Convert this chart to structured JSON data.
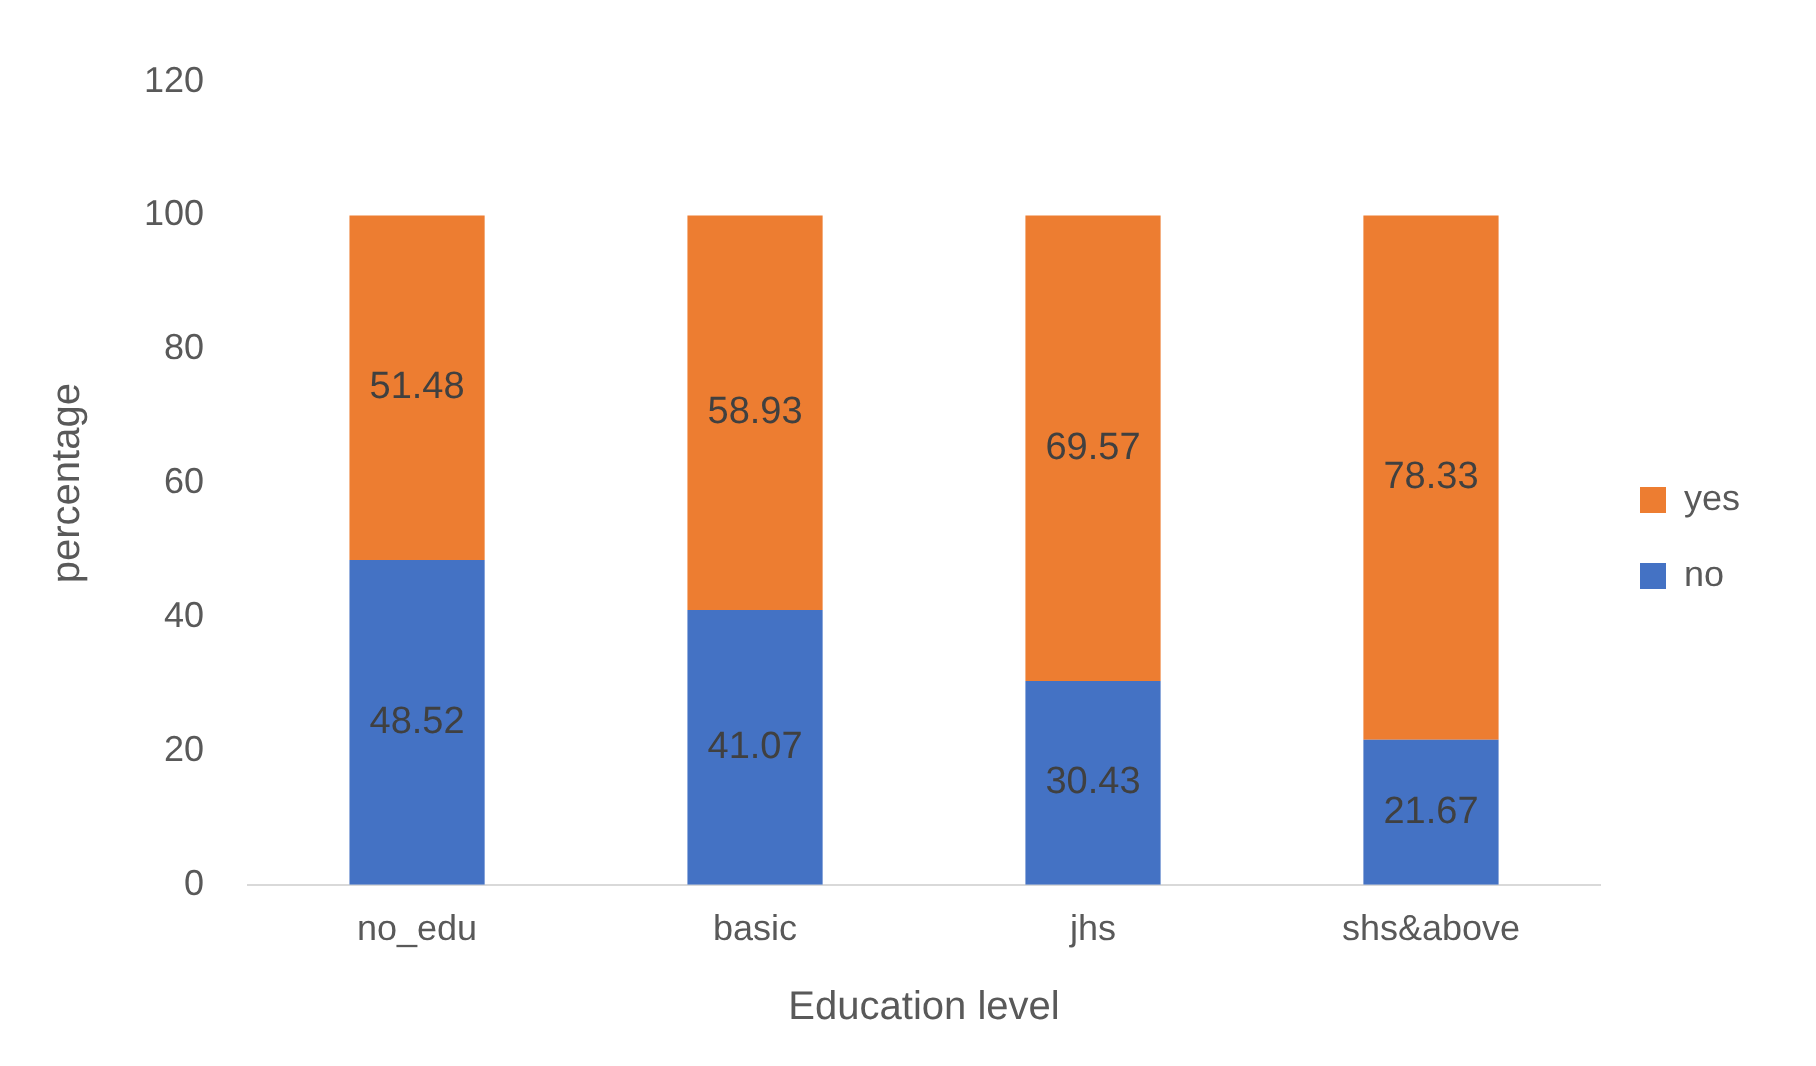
{
  "chart_data": {
    "type": "bar",
    "stacked": true,
    "xlabel": "Education level",
    "ylabel": "percentage",
    "categories": [
      "no_edu",
      "basic",
      "jhs",
      "shs&above"
    ],
    "series": [
      {
        "name": "no",
        "color": "#4472c4",
        "values": [
          48.52,
          41.07,
          30.43,
          21.67
        ]
      },
      {
        "name": "yes",
        "color": "#ed7d31",
        "values": [
          51.48,
          58.93,
          69.57,
          78.33
        ]
      }
    ],
    "ylim": [
      0,
      120
    ],
    "yticks": [
      0,
      20,
      40,
      60,
      80,
      100,
      120
    ],
    "grid": false,
    "legend": "right",
    "data_labels": true
  }
}
